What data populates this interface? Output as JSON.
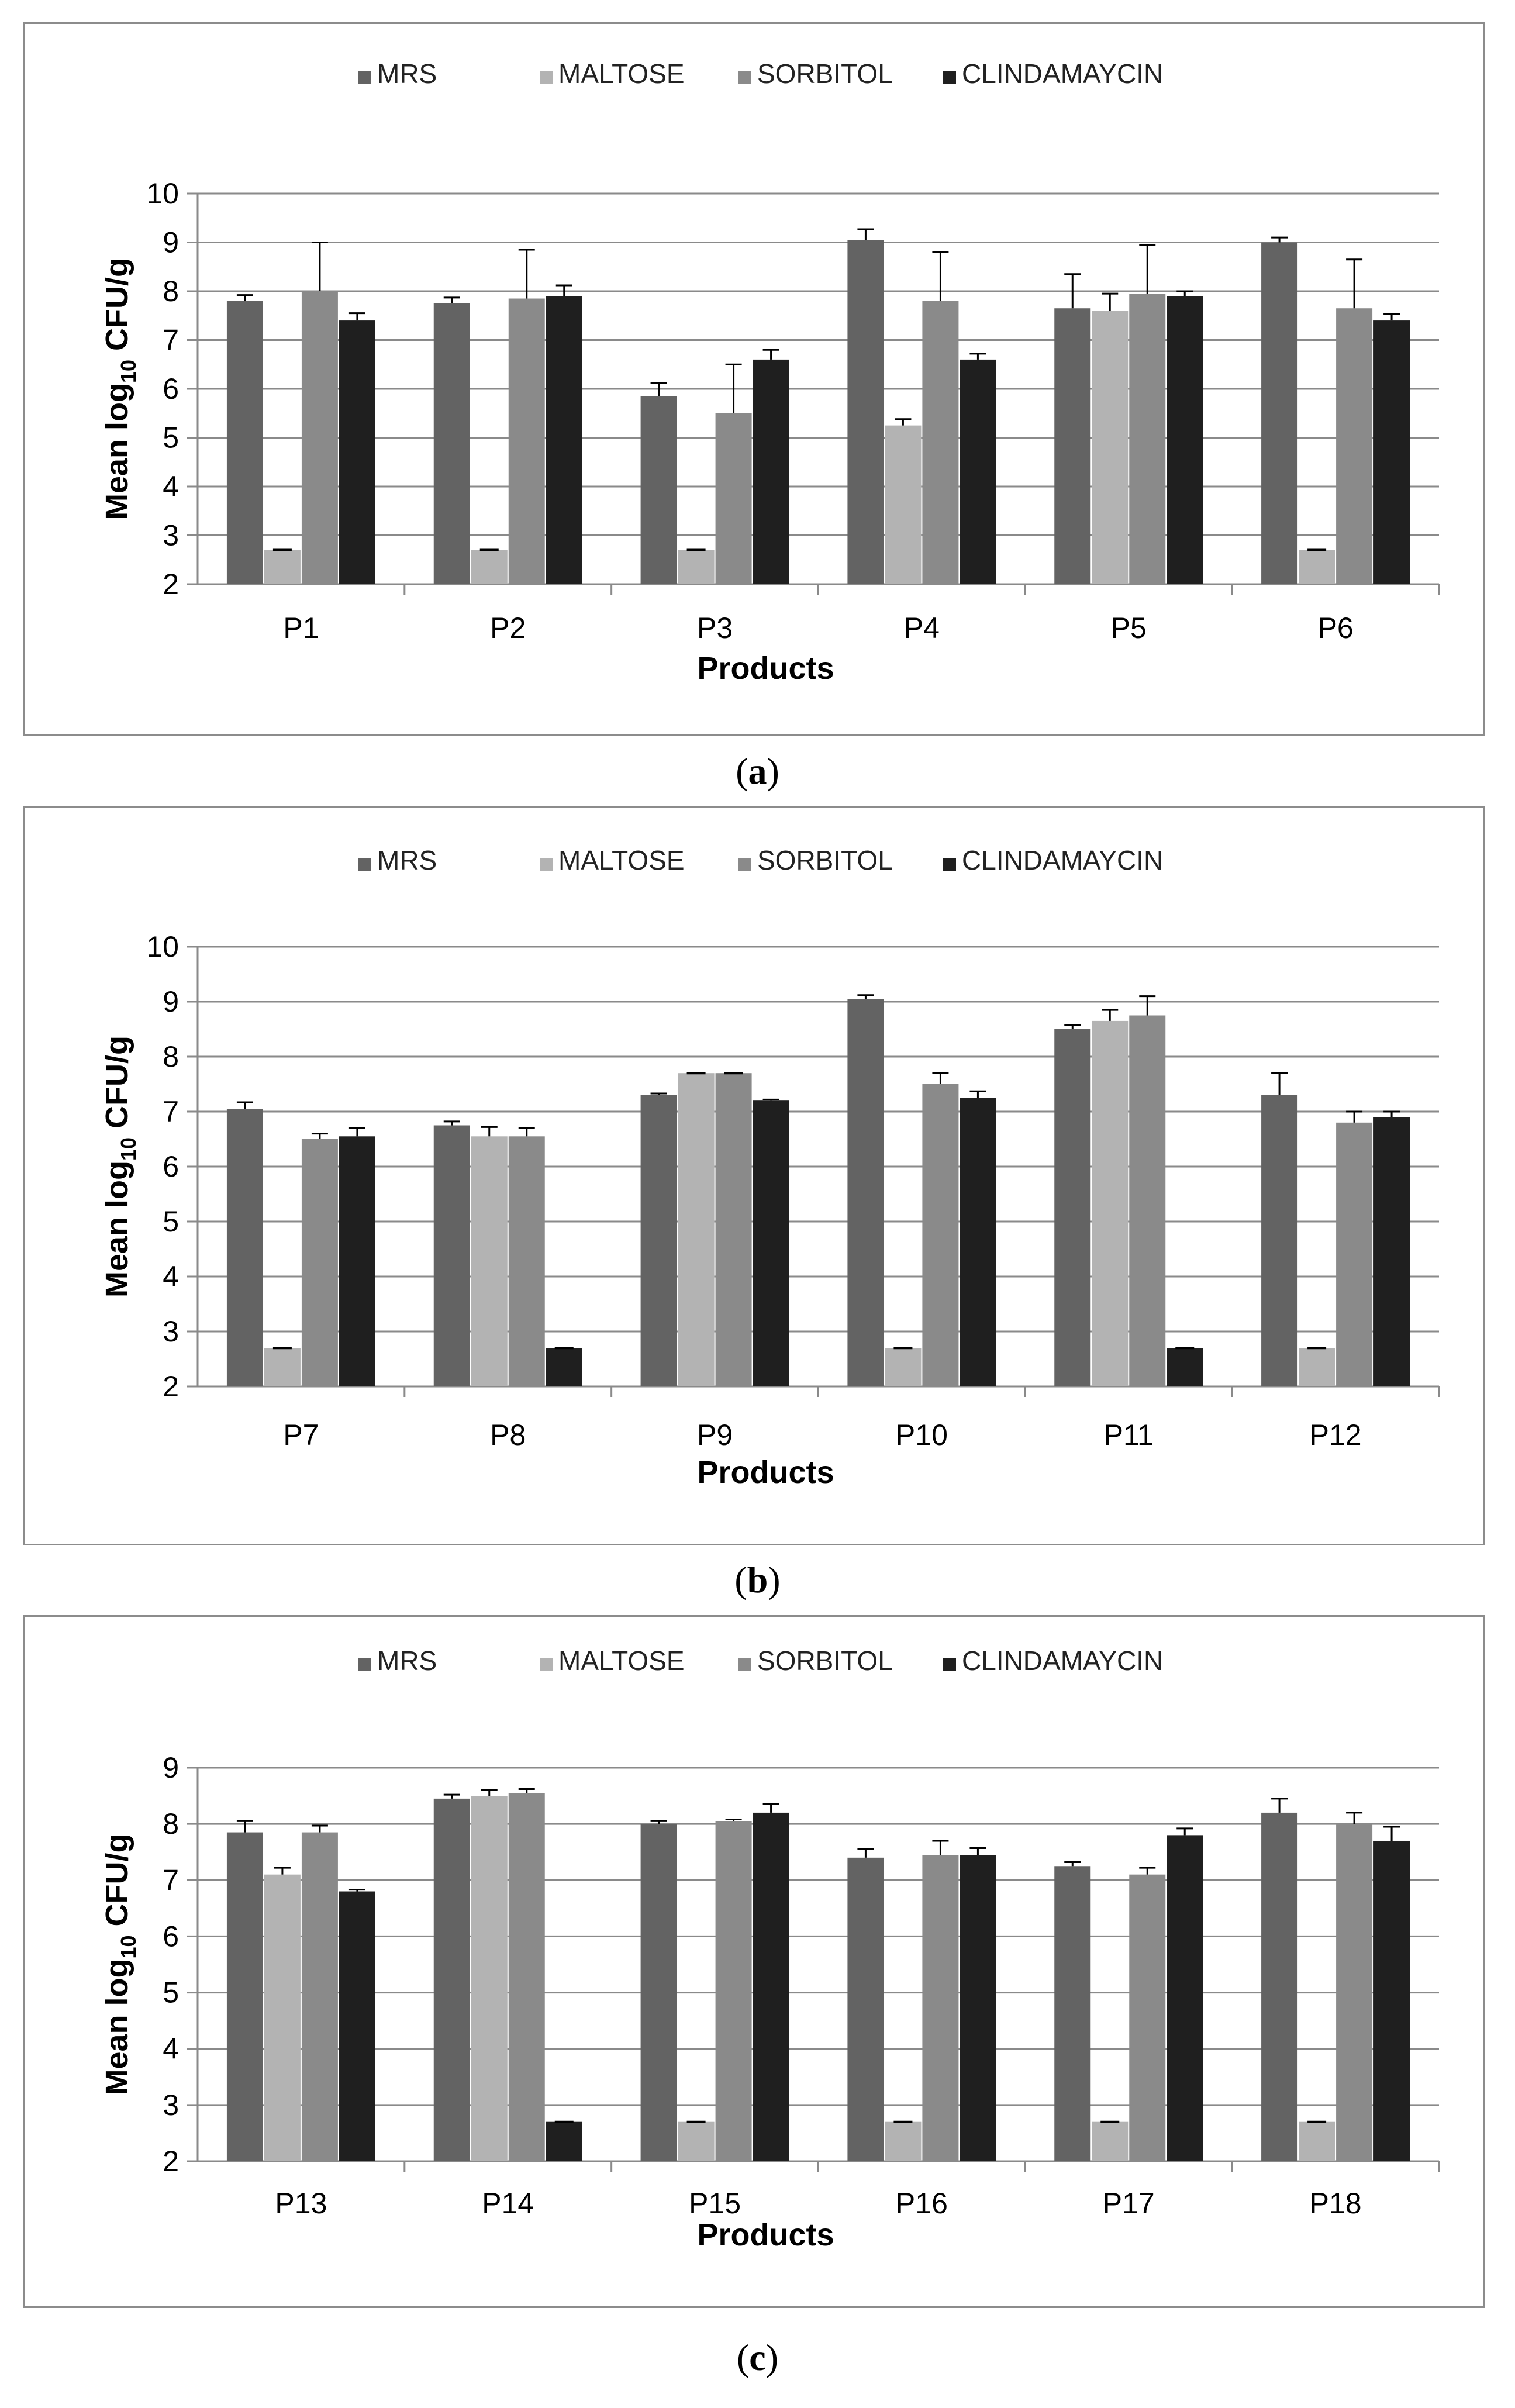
{
  "legend": {
    "items": [
      {
        "label": "MRS",
        "color": "#636363"
      },
      {
        "label": "MALTOSE",
        "color": "#b3b3b3"
      },
      {
        "label": "SORBITOL",
        "color": "#8a8a8a"
      },
      {
        "label": "CLINDAMAYCIN",
        "color": "#1f1f1f"
      }
    ]
  },
  "captions": [
    {
      "open": "(",
      "letter": "a",
      "close": ")"
    },
    {
      "open": "(",
      "letter": "b",
      "close": ")"
    },
    {
      "open": "(",
      "letter": "c",
      "close": ")"
    }
  ],
  "chart_data": [
    {
      "type": "bar",
      "panel": "a",
      "ylabel_main": "Mean log",
      "ylabel_sub": "10",
      "ylabel_end": " CFU/g",
      "xlabel": "Products",
      "ylim": [
        2,
        10
      ],
      "yticks": [
        "2",
        "3",
        "4",
        "5",
        "6",
        "7",
        "8",
        "9",
        "10"
      ],
      "categories": [
        "P1",
        "P2",
        "P3",
        "P4",
        "P5",
        "P6"
      ],
      "series": [
        {
          "name": "MRS",
          "values": [
            7.8,
            7.75,
            5.85,
            9.05,
            7.65,
            9.0
          ],
          "errors": [
            0.12,
            0.12,
            0.27,
            0.22,
            0.7,
            0.1
          ]
        },
        {
          "name": "MALTOSE",
          "values": [
            2.7,
            2.7,
            2.7,
            5.25,
            7.6,
            2.7
          ],
          "errors": [
            0,
            0,
            0,
            0.13,
            0.35,
            0
          ]
        },
        {
          "name": "SORBITOL",
          "values": [
            8.0,
            7.85,
            5.5,
            7.8,
            7.95,
            7.65
          ],
          "errors": [
            1.0,
            1.0,
            1.0,
            1.0,
            1.0,
            1.0
          ]
        },
        {
          "name": "CLINDAMAYCIN",
          "values": [
            7.4,
            7.9,
            6.6,
            6.6,
            7.9,
            7.4
          ],
          "errors": [
            0.15,
            0.22,
            0.2,
            0.12,
            0.1,
            0.13
          ]
        }
      ]
    },
    {
      "type": "bar",
      "panel": "b",
      "ylabel_main": "Mean log",
      "ylabel_sub": "10",
      "ylabel_end": " CFU/g",
      "xlabel": "Products",
      "ylim": [
        2,
        10
      ],
      "yticks": [
        "2",
        "3",
        "4",
        "5",
        "6",
        "7",
        "8",
        "9",
        "10"
      ],
      "categories": [
        "P7",
        "P8",
        "P9",
        "P10",
        "P11",
        "P12"
      ],
      "series": [
        {
          "name": "MRS",
          "values": [
            7.05,
            6.75,
            7.3,
            9.05,
            8.5,
            7.3
          ],
          "errors": [
            0.12,
            0.07,
            0.03,
            0.07,
            0.08,
            0.4
          ]
        },
        {
          "name": "MALTOSE",
          "values": [
            2.7,
            6.55,
            7.7,
            2.7,
            8.65,
            2.7
          ],
          "errors": [
            0,
            0.17,
            0,
            0,
            0.2,
            0
          ]
        },
        {
          "name": "SORBITOL",
          "values": [
            6.5,
            6.55,
            7.7,
            7.5,
            8.75,
            6.8
          ],
          "errors": [
            0.1,
            0.15,
            0,
            0.2,
            0.35,
            0.2
          ]
        },
        {
          "name": "CLINDAMAYCIN",
          "values": [
            6.55,
            2.7,
            7.2,
            7.25,
            2.7,
            6.9
          ],
          "errors": [
            0.15,
            0,
            0.02,
            0.12,
            0,
            0.1
          ]
        }
      ]
    },
    {
      "type": "bar",
      "panel": "c",
      "ylabel_main": "Mean log",
      "ylabel_sub": "10",
      "ylabel_end": " CFU/g",
      "xlabel": "Products",
      "ylim": [
        2,
        9
      ],
      "yticks": [
        "2",
        "3",
        "4",
        "5",
        "6",
        "7",
        "8",
        "9"
      ],
      "categories": [
        "P13",
        "P14",
        "P15",
        "P16",
        "P17",
        "P18"
      ],
      "series": [
        {
          "name": "MRS",
          "values": [
            7.85,
            8.45,
            8.0,
            7.4,
            7.25,
            8.2
          ],
          "errors": [
            0.2,
            0.07,
            0.05,
            0.15,
            0.07,
            0.25
          ]
        },
        {
          "name": "MALTOSE",
          "values": [
            7.1,
            8.5,
            2.7,
            2.7,
            2.7,
            2.7
          ],
          "errors": [
            0.12,
            0.1,
            0,
            0,
            0,
            0
          ]
        },
        {
          "name": "SORBITOL",
          "values": [
            7.85,
            8.55,
            8.05,
            7.45,
            7.1,
            8.0
          ],
          "errors": [
            0.12,
            0.07,
            0.03,
            0.25,
            0.12,
            0.2
          ]
        },
        {
          "name": "CLINDAMAYCIN",
          "values": [
            6.8,
            2.7,
            8.2,
            7.45,
            7.8,
            7.7
          ],
          "errors": [
            0.03,
            0,
            0.15,
            0.12,
            0.12,
            0.25
          ]
        }
      ]
    }
  ]
}
